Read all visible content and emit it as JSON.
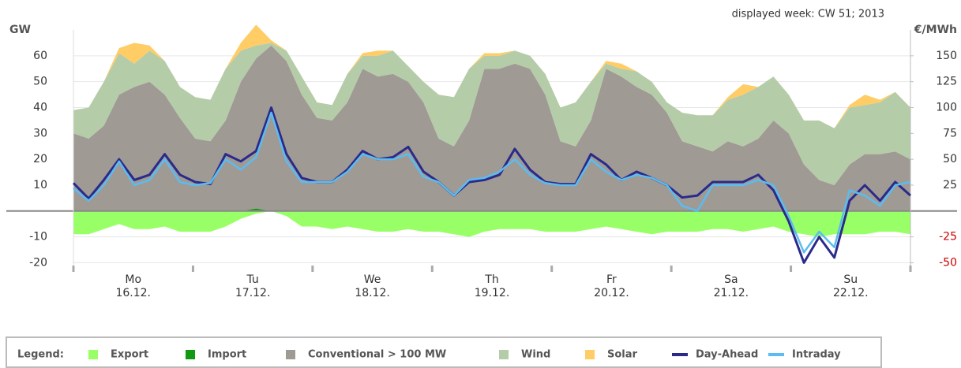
{
  "chart_data": {
    "type": "stacked-area-line",
    "header": "displayed week: CW 51; 2013",
    "y_label": "GW",
    "y2_label": "€/MWh",
    "categories": [
      "Mo",
      "Tu",
      "We",
      "Th",
      "Fr",
      "Sa",
      "Su"
    ],
    "dates": [
      "16.12.",
      "17.12.",
      "18.12.",
      "19.12.",
      "20.12.",
      "21.12.",
      "22.12."
    ],
    "ylim": [
      -22,
      70
    ],
    "yticks": [
      -20,
      -10,
      10,
      20,
      30,
      40,
      50,
      60
    ],
    "y2lim": [
      -55,
      175
    ],
    "y2ticks": [
      -50,
      -25,
      25,
      50,
      75,
      100,
      125,
      150
    ],
    "y2_negative_color": "#cc0000",
    "grid": true,
    "legend_title": "Legend:",
    "series": [
      {
        "name": "Export",
        "color": "#99ff66",
        "kind": "area",
        "stack": "negative",
        "values": [
          [
            -9,
            -9,
            -7,
            -5,
            -7,
            -7,
            -6,
            -8
          ],
          [
            -8,
            -8,
            -6,
            -3,
            -1,
            0,
            -2,
            -6
          ],
          [
            -6,
            -7,
            -6,
            -7,
            -8,
            -8,
            -7,
            -8
          ],
          [
            -8,
            -9,
            -10,
            -8,
            -7,
            -7,
            -7,
            -8
          ],
          [
            -8,
            -8,
            -7,
            -6,
            -7,
            -8,
            -9,
            -8
          ],
          [
            -8,
            -8,
            -7,
            -7,
            -8,
            -7,
            -6,
            -8
          ],
          [
            -9,
            -10,
            -9,
            -9,
            -9,
            -8,
            -8,
            -9
          ]
        ]
      },
      {
        "name": "Import",
        "color": "#119911",
        "kind": "area",
        "stack": "positive",
        "values": [
          [
            0,
            0,
            0,
            0,
            0,
            0,
            0,
            0
          ],
          [
            0,
            0,
            0,
            0,
            1,
            0,
            0,
            0
          ],
          [
            0,
            0,
            0,
            0,
            0,
            0,
            0,
            0
          ],
          [
            0,
            0,
            0,
            0,
            0,
            0,
            0,
            0
          ],
          [
            0,
            0,
            0,
            0,
            0,
            0,
            0,
            0
          ],
          [
            0,
            0,
            0,
            0,
            0,
            0,
            0,
            0
          ],
          [
            0,
            0,
            0,
            0,
            0,
            0,
            0,
            0
          ]
        ]
      },
      {
        "name": "Conventional > 100 MW",
        "color": "#a09a94",
        "kind": "area",
        "stack": "positive",
        "values": [
          [
            30,
            28,
            33,
            45,
            48,
            50,
            45,
            36
          ],
          [
            28,
            27,
            35,
            50,
            58,
            64,
            58,
            45
          ],
          [
            36,
            35,
            42,
            55,
            52,
            53,
            50,
            42
          ],
          [
            28,
            25,
            35,
            55,
            55,
            57,
            55,
            45
          ],
          [
            27,
            25,
            35,
            55,
            52,
            48,
            45,
            38
          ],
          [
            27,
            25,
            23,
            27,
            25,
            28,
            35,
            30
          ],
          [
            18,
            12,
            10,
            18,
            22,
            22,
            23,
            20
          ]
        ]
      },
      {
        "name": "Wind",
        "color": "#b5cca8",
        "kind": "area",
        "stack": "positive",
        "values": [
          [
            9,
            12,
            17,
            16,
            9,
            12,
            13,
            12
          ],
          [
            16,
            16,
            20,
            12,
            5,
            1,
            4,
            7
          ],
          [
            6,
            6,
            11,
            5,
            8,
            9,
            6,
            8
          ],
          [
            17,
            19,
            20,
            5,
            5,
            5,
            5,
            8
          ],
          [
            13,
            17,
            15,
            2,
            3,
            6,
            5,
            4
          ],
          [
            11,
            12,
            14,
            16,
            20,
            20,
            17,
            15
          ],
          [
            17,
            23,
            22,
            22,
            19,
            20,
            23,
            20
          ]
        ]
      },
      {
        "name": "Solar",
        "color": "#ffcc66",
        "kind": "area",
        "stack": "positive",
        "values": [
          [
            0,
            0,
            0,
            2,
            8,
            2,
            0,
            0
          ],
          [
            0,
            0,
            0,
            3,
            8,
            1,
            0,
            0
          ],
          [
            0,
            0,
            0,
            1,
            2,
            0,
            0,
            0
          ],
          [
            0,
            0,
            0,
            1,
            1,
            0,
            0,
            0
          ],
          [
            0,
            0,
            0,
            1,
            2,
            0,
            0,
            0
          ],
          [
            0,
            0,
            0,
            1,
            4,
            0,
            0,
            0
          ],
          [
            0,
            0,
            0,
            1,
            4,
            1,
            0,
            0
          ]
        ]
      },
      {
        "name": "Day-Ahead",
        "color": "#2b2a8a",
        "kind": "line",
        "axis": "y2",
        "width": 3,
        "values": [
          [
            27,
            12,
            30,
            50,
            30,
            35,
            55,
            35
          ],
          [
            28,
            26,
            55,
            48,
            58,
            100,
            55,
            32
          ],
          [
            28,
            28,
            40,
            58,
            50,
            52,
            62,
            38
          ],
          [
            28,
            15,
            28,
            30,
            35,
            60,
            40,
            28
          ],
          [
            26,
            26,
            55,
            45,
            30,
            38,
            32,
            25
          ],
          [
            13,
            15,
            28,
            28,
            28,
            35,
            20,
            -10
          ],
          [
            -50,
            -25,
            -45,
            10,
            25,
            10,
            28,
            15
          ]
        ]
      },
      {
        "name": "Intraday",
        "color": "#5bbcf0",
        "kind": "line",
        "axis": "y2",
        "width": 2.5,
        "values": [
          [
            22,
            10,
            25,
            48,
            25,
            30,
            50,
            28
          ],
          [
            25,
            27,
            50,
            40,
            52,
            95,
            48,
            28
          ],
          [
            28,
            28,
            38,
            55,
            50,
            50,
            55,
            33
          ],
          [
            28,
            15,
            30,
            32,
            38,
            50,
            35,
            27
          ],
          [
            25,
            25,
            50,
            38,
            30,
            35,
            32,
            25
          ],
          [
            5,
            0,
            25,
            25,
            25,
            30,
            25,
            -5
          ],
          [
            -40,
            -20,
            -35,
            20,
            15,
            5,
            25,
            28
          ]
        ]
      }
    ]
  }
}
